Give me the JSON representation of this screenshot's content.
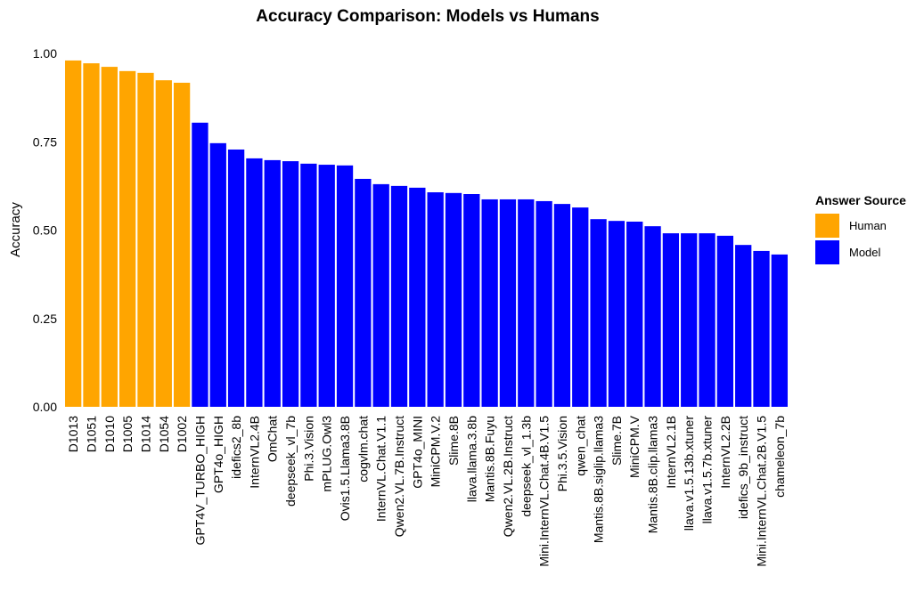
{
  "chart_data": {
    "type": "bar",
    "title": "Accuracy Comparison: Models vs Humans",
    "y_label": "Accuracy",
    "legend_title": "Answer Source",
    "legend": "right",
    "grid": false,
    "categories": [
      "D1013",
      "D1051",
      "D1010",
      "D1005",
      "D1014",
      "D1054",
      "D1002",
      "GPT4V_TURBO_HIGH",
      "GPT4o_HIGH",
      "idefics2_8b",
      "InternVL2.4B",
      "OmChat",
      "deepseek_vl_7b",
      "Phi.3.Vision",
      "mPLUG.Owl3",
      "Ovis1.5.Llama3.8B",
      "cogvlm.chat",
      "InternVL.Chat.V1.1",
      "Qwen2.VL.7B.Instruct",
      "GPT4o_MINI",
      "MiniCPM.V.2",
      "Slime.8B",
      "llava.llama.3.8b",
      "Mantis.8B.Fuyu",
      "Qwen2.VL.2B.Instruct",
      "deepseek_vl_1.3b",
      "Mini.InternVL.Chat.4B.V1.5",
      "Phi.3.5.Vision",
      "qwen_chat",
      "Mantis.8B.siglip.llama3",
      "Slime.7B",
      "MiniCPM.V",
      "Mantis.8B.clip.llama3",
      "InternVL2.1B",
      "llava.v1.5.13b.xtuner",
      "llava.v1.5.7b.xtuner",
      "InternVL2.2B",
      "idefics_9b_instruct",
      "Mini.InternVL.Chat.2B.V1.5",
      "chameleon_7b"
    ],
    "series": [
      {
        "name": "Human",
        "color": "#FFA500",
        "values": [
          0.98,
          0.972,
          0.962,
          0.95,
          0.945,
          0.924,
          0.917,
          null,
          null,
          null,
          null,
          null,
          null,
          null,
          null,
          null,
          null,
          null,
          null,
          null,
          null,
          null,
          null,
          null,
          null,
          null,
          null,
          null,
          null,
          null,
          null,
          null,
          null,
          null,
          null,
          null,
          null,
          null,
          null,
          null
        ]
      },
      {
        "name": "Model",
        "color": "#0000FF",
        "values": [
          null,
          null,
          null,
          null,
          null,
          null,
          null,
          0.804,
          0.746,
          0.728,
          0.703,
          0.698,
          0.695,
          0.688,
          0.685,
          0.683,
          0.645,
          0.63,
          0.625,
          0.62,
          0.607,
          0.605,
          0.602,
          0.587,
          0.587,
          0.587,
          0.582,
          0.574,
          0.564,
          0.531,
          0.526,
          0.524,
          0.511,
          0.491,
          0.491,
          0.491,
          0.484,
          0.458,
          0.441,
          0.431
        ]
      }
    ],
    "ylim": [
      0,
      1
    ],
    "yticks": [
      {
        "value": 0,
        "label": "0.00"
      },
      {
        "value": 0.25,
        "label": "0.25"
      },
      {
        "value": 0.5,
        "label": "0.50"
      },
      {
        "value": 0.75,
        "label": "0.75"
      },
      {
        "value": 1,
        "label": "1.00"
      }
    ]
  }
}
